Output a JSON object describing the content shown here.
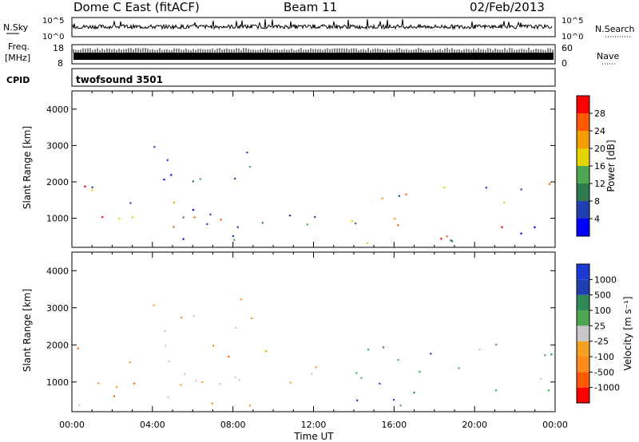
{
  "header": {
    "station": "Dome C East (fitACF)",
    "beam": "Beam 11",
    "date": "02/Feb/2013"
  },
  "strips": {
    "nsky_label": "N.Sky",
    "nsky_top": "10^5",
    "nsky_bottom": "10^0",
    "nsearch_label": "N.Search",
    "freq_label_1": "Freq.",
    "freq_label_2": "[MHz]",
    "freq_top": "18",
    "freq_bottom": "8",
    "nave_label": "Nave",
    "nave_top": "60",
    "nave_bottom": "0",
    "cpid_label": "CPID",
    "cpid_value": "twofsound 3501"
  },
  "axes": {
    "x_label": "Time UT",
    "x_ticks": [
      "00:00",
      "04:00",
      "08:00",
      "12:00",
      "16:00",
      "20:00",
      "00:00"
    ],
    "y_label": "Slant Range [km]",
    "y_ticks": [
      "1000",
      "2000",
      "3000",
      "4000"
    ]
  },
  "colors": {
    "power": [
      "#0000ff",
      "#1f3fb3",
      "#2e7a4e",
      "#4fa84f",
      "#e5d300",
      "#f59c00",
      "#ff5a00",
      "#ff0000"
    ],
    "velocity": [
      "#ff0000",
      "#ff5a00",
      "#ff8c1a",
      "#f5a020",
      "#c8c8c8",
      "#4fa84f",
      "#2e8b57",
      "#1f3fb3",
      "#1a3bd4"
    ]
  },
  "chart_data": [
    {
      "type": "heatmap",
      "name": "power-panel",
      "x_range_hours": [
        0,
        24
      ],
      "ylim": [
        200,
        4500
      ],
      "xlabel": "",
      "ylabel": "Slant Range [km]",
      "colorbar_label": "Power [dB]",
      "colorbar_ticks": [
        "4",
        "8",
        "12",
        "16",
        "20",
        "24",
        "28"
      ],
      "data_gap_hours": [
        13.2,
        13.8
      ],
      "bands": [
        {
          "t0": 0.0,
          "t1": 12.2,
          "r0": 300,
          "r1": 2000,
          "level": "mixed"
        },
        {
          "t0": 13.8,
          "t1": 24.0,
          "r0": 300,
          "r1": 2100,
          "level": "mixed"
        },
        {
          "t0": 4.0,
          "t1": 10.5,
          "r0": 2000,
          "r1": 3300,
          "level": "low"
        },
        {
          "t0": 18.0,
          "t1": 20.0,
          "r0": 300,
          "r1": 500,
          "level": "high"
        }
      ]
    },
    {
      "type": "heatmap",
      "name": "velocity-panel",
      "x_range_hours": [
        0,
        24
      ],
      "ylim": [
        200,
        4500
      ],
      "xlabel": "Time UT",
      "ylabel": "Slant Range [km]",
      "colorbar_label": "Velocity [m s⁻¹]",
      "colorbar_ticks": [
        "-1000",
        "-500",
        "-100",
        "-25",
        "25",
        "100",
        "500",
        "1000"
      ],
      "data_gap_hours": [
        13.2,
        13.8
      ],
      "bands": [
        {
          "t0": 0.0,
          "t1": 12.2,
          "r0": 300,
          "r1": 2000,
          "level": "negative"
        },
        {
          "t0": 13.8,
          "t1": 24.0,
          "r0": 300,
          "r1": 2100,
          "level": "positive"
        },
        {
          "t0": 4.0,
          "t1": 10.5,
          "r0": 2000,
          "r1": 3300,
          "level": "neutral"
        }
      ]
    }
  ]
}
